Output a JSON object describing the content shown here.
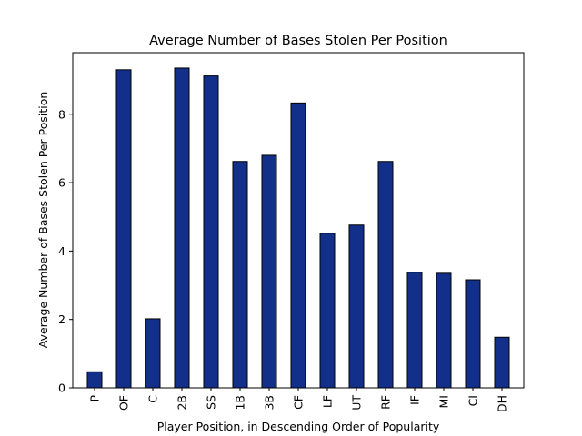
{
  "chart_data": {
    "type": "bar",
    "title": "Average Number of Bases Stolen Per Position",
    "xlabel": "Player Position, in Descending Order of Popularity",
    "ylabel": "Average Number of Bases Stolen Per Position",
    "categories": [
      "P",
      "OF",
      "C",
      "2B",
      "SS",
      "1B",
      "3B",
      "CF",
      "LF",
      "UT",
      "RF",
      "IF",
      "MI",
      "CI",
      "DH"
    ],
    "values": [
      0.47,
      9.3,
      2.02,
      9.35,
      9.12,
      6.62,
      6.8,
      8.33,
      4.52,
      4.76,
      6.62,
      3.38,
      3.35,
      3.16,
      1.48
    ],
    "ylim": [
      0,
      9.8
    ],
    "yticks": [
      0,
      2,
      4,
      6,
      8
    ],
    "grid": false,
    "legend": "none",
    "colors": {
      "bar": "#12308a",
      "edge": "#000000"
    }
  }
}
